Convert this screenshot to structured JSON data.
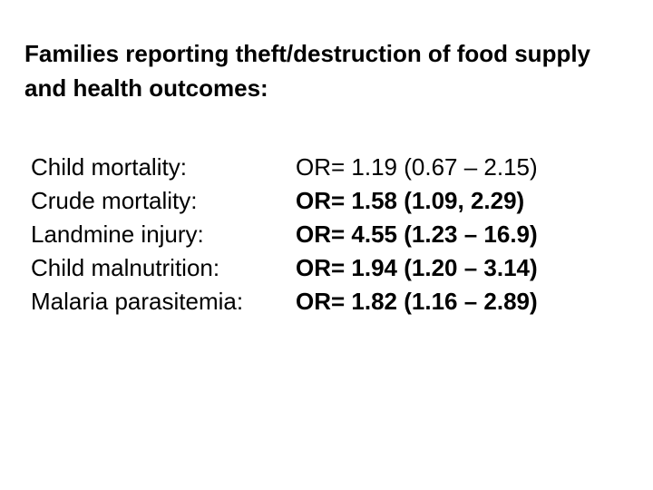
{
  "slide": {
    "title": "Families reporting theft/destruction of food supply and health outcomes:",
    "rows": [
      {
        "label": "Child mortality:",
        "value": "OR= 1.19 (0.67 – 2.15)",
        "bold": false
      },
      {
        "label": "Crude mortality:",
        "value": "OR= 1.58 (1.09, 2.29)",
        "bold": true
      },
      {
        "label": "Landmine injury:",
        "value": "OR= 4.55 (1.23 – 16.9)",
        "bold": true
      },
      {
        "label": "Child malnutrition:",
        "value": "OR= 1.94 (1.20 – 3.14)",
        "bold": true
      },
      {
        "label": "Malaria parasitemia:",
        "value": "OR= 1.82 (1.16 – 2.89)",
        "bold": true
      }
    ]
  }
}
